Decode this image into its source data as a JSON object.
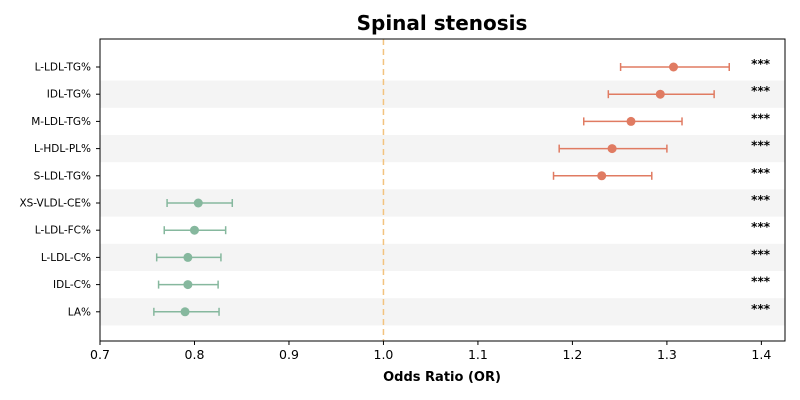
{
  "chart_data": {
    "type": "forest",
    "title": "Spinal stenosis",
    "xlabel": "Odds Ratio (OR)",
    "xlim": [
      0.7,
      1.425
    ],
    "xticks": [
      "0.7",
      "0.8",
      "0.9",
      "1.0",
      "1.1",
      "1.2",
      "1.3",
      "1.4"
    ],
    "reference_line": 1.0,
    "colors": {
      "risk": "#e07b62",
      "protective": "#86b89e",
      "reference": "#f2c37f",
      "band": "#f4f4f4",
      "axis": "#000000"
    },
    "rows": [
      {
        "label": "L-LDL-TG%",
        "or": 1.307,
        "lo": 1.251,
        "hi": 1.366,
        "sig": "***",
        "group": "risk"
      },
      {
        "label": "IDL-TG%",
        "or": 1.293,
        "lo": 1.238,
        "hi": 1.35,
        "sig": "***",
        "group": "risk"
      },
      {
        "label": "M-LDL-TG%",
        "or": 1.262,
        "lo": 1.212,
        "hi": 1.316,
        "sig": "***",
        "group": "risk"
      },
      {
        "label": "L-HDL-PL%",
        "or": 1.242,
        "lo": 1.186,
        "hi": 1.3,
        "sig": "***",
        "group": "risk"
      },
      {
        "label": "S-LDL-TG%",
        "or": 1.231,
        "lo": 1.18,
        "hi": 1.284,
        "sig": "***",
        "group": "risk"
      },
      {
        "label": "XS-VLDL-CE%",
        "or": 0.804,
        "lo": 0.771,
        "hi": 0.84,
        "sig": "***",
        "group": "protective"
      },
      {
        "label": "L-LDL-FC%",
        "or": 0.8,
        "lo": 0.768,
        "hi": 0.833,
        "sig": "***",
        "group": "protective"
      },
      {
        "label": "L-LDL-C%",
        "or": 0.793,
        "lo": 0.76,
        "hi": 0.828,
        "sig": "***",
        "group": "protective"
      },
      {
        "label": "IDL-C%",
        "or": 0.793,
        "lo": 0.762,
        "hi": 0.825,
        "sig": "***",
        "group": "protective"
      },
      {
        "label": "LA%",
        "or": 0.79,
        "lo": 0.757,
        "hi": 0.826,
        "sig": "***",
        "group": "protective"
      }
    ]
  }
}
